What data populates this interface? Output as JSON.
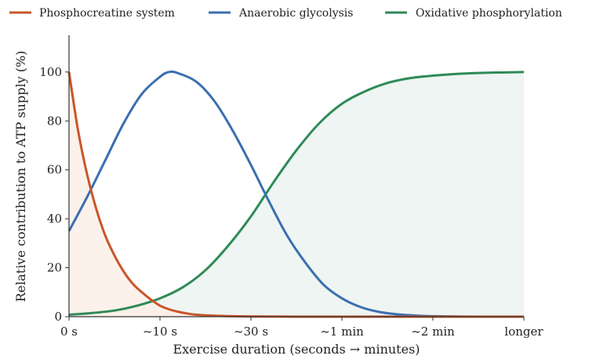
{
  "chart_data": {
    "type": "line",
    "title": "",
    "xlabel": "Exercise duration  (seconds → minutes)",
    "ylabel": "Relative contribution to ATP supply (%)",
    "x_categories": [
      "0 s",
      "~10 s",
      "~30 s",
      "~1 min",
      "~2 min",
      "longer"
    ],
    "xlim": [
      0,
      5
    ],
    "ylim": [
      0,
      115
    ],
    "y_ticks": [
      0,
      20,
      40,
      60,
      80,
      100
    ],
    "grid": false,
    "legend_position": "top",
    "series": [
      {
        "name": "Phosphocreatine system",
        "color": "#c8562a",
        "fill": "#fbeee8",
        "x": [
          0,
          0.1,
          0.2,
          0.3,
          0.4,
          0.5,
          0.6,
          0.7,
          0.8,
          0.9,
          1.0,
          1.1,
          1.2,
          1.3,
          1.4,
          1.6,
          1.8,
          2.0,
          2.5,
          3.0,
          4.0,
          5.0
        ],
        "values": [
          100,
          76,
          58,
          44,
          33,
          25,
          18.5,
          13.5,
          10,
          7,
          4.5,
          3,
          2,
          1.3,
          0.8,
          0.4,
          0.2,
          0.1,
          0,
          0,
          0,
          0
        ]
      },
      {
        "name": "Anaerobic glycolysis",
        "color": "#3a6fb0",
        "x": [
          0,
          0.2,
          0.4,
          0.6,
          0.8,
          1.0,
          1.1,
          1.2,
          1.4,
          1.6,
          1.8,
          2.0,
          2.2,
          2.4,
          2.6,
          2.8,
          3.0,
          3.2,
          3.4,
          3.6,
          3.8,
          4.0,
          4.5,
          5.0
        ],
        "values": [
          35,
          49,
          64,
          79,
          91,
          98,
          100,
          99.5,
          96,
          88,
          76,
          62,
          47,
          33,
          22,
          13,
          7.5,
          4,
          2,
          1,
          0.5,
          0.2,
          0,
          0
        ]
      },
      {
        "name": "Oxidative phosphorylation",
        "color": "#2e8a57",
        "fill": "#eef5f2",
        "x": [
          0,
          0.25,
          0.5,
          0.75,
          1.0,
          1.25,
          1.5,
          1.75,
          2.0,
          2.25,
          2.5,
          2.75,
          3.0,
          3.25,
          3.5,
          3.75,
          4.0,
          4.25,
          4.5,
          4.75,
          5.0
        ],
        "values": [
          0.8,
          1.5,
          2.5,
          4.5,
          7.5,
          12,
          19,
          29,
          41,
          55,
          68,
          79,
          87,
          92,
          95.5,
          97.5,
          98.5,
          99.2,
          99.6,
          99.8,
          100
        ]
      }
    ]
  }
}
